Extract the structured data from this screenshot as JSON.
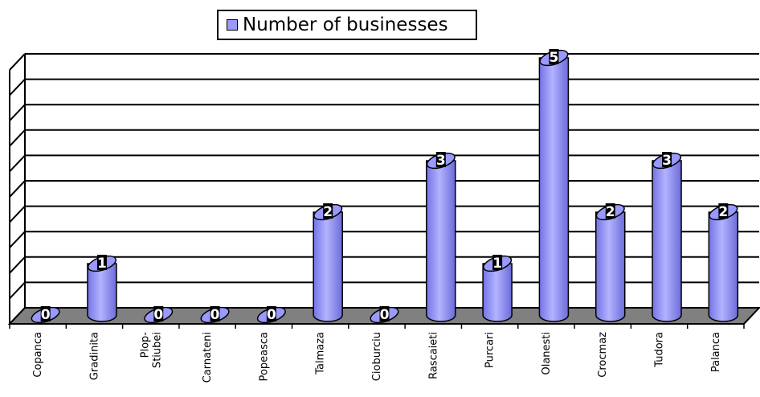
{
  "chart_data": {
    "type": "bar",
    "categories": [
      "Copanca",
      "Gradinita",
      "Plop-\nStiubei",
      "Carnateni",
      "Popeasca",
      "Talmaza",
      "Cioburciu",
      "Rascaieti",
      "Purcari",
      "Olanesti",
      "Crocmaz",
      "Tudora",
      "Palanca"
    ],
    "series": [
      {
        "name": "Number of businesses",
        "values": [
          0,
          1,
          0,
          0,
          0,
          2,
          0,
          3,
          1,
          5,
          2,
          3,
          2
        ]
      }
    ],
    "ylim": [
      0,
      5
    ],
    "grid": true,
    "legend_position": "top",
    "bar_color": "#9999ff",
    "floor_color": "#808080"
  }
}
